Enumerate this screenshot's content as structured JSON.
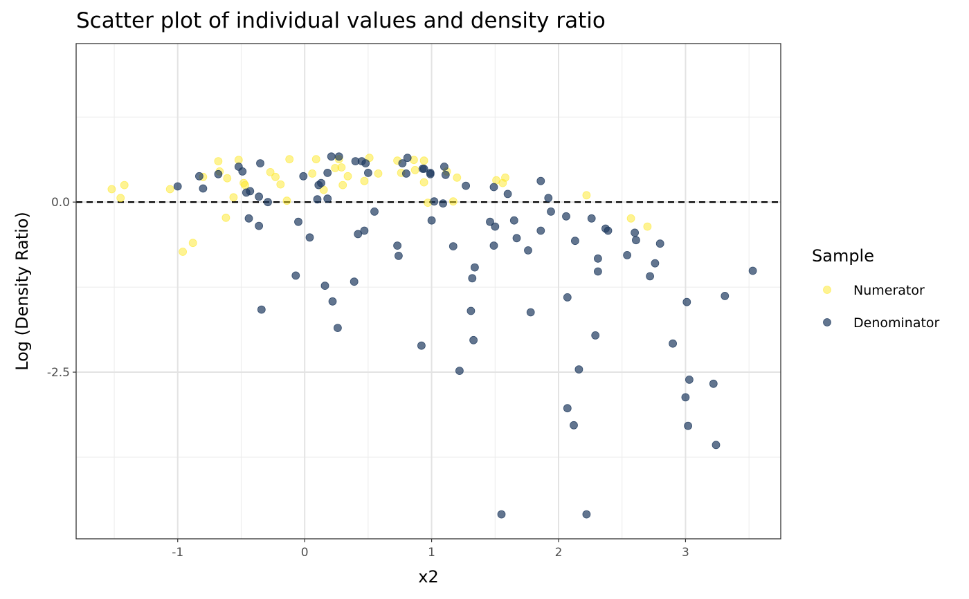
{
  "chart_data": {
    "type": "scatter",
    "title": "Scatter plot of individual values and density ratio",
    "xlabel": "x2",
    "ylabel": "Log (Density Ratio)",
    "xlim": [
      -1.8,
      3.75
    ],
    "ylim": [
      -4.95,
      2.33
    ],
    "x_ticks": [
      -1,
      0,
      1,
      2,
      3
    ],
    "x_tick_labels": [
      "-1",
      "0",
      "1",
      "2",
      "3"
    ],
    "y_ticks": [
      -2.5,
      0
    ],
    "y_tick_labels": [
      "-2.5",
      "0.0"
    ],
    "minor_x": [
      -1.5,
      -0.5,
      0.5,
      1.5,
      2.5,
      3.5
    ],
    "minor_y": [
      -3.75,
      -1.25,
      1.25
    ],
    "grid": true,
    "reference_line": {
      "y": 0,
      "style": "dashed",
      "color": "#000000"
    },
    "legend": {
      "title": "Sample",
      "position": "right",
      "entries": [
        "Numerator",
        "Denominator"
      ]
    },
    "series": [
      {
        "name": "Numerator",
        "color": "#fde725",
        "opacity": 0.5,
        "points": [
          [
            -1.52,
            0.19
          ],
          [
            -1.45,
            0.06
          ],
          [
            -1.42,
            0.25
          ],
          [
            -1.06,
            0.19
          ],
          [
            -0.96,
            -0.73
          ],
          [
            -0.88,
            -0.6
          ],
          [
            -0.8,
            0.37
          ],
          [
            -0.68,
            0.6
          ],
          [
            -0.67,
            0.45
          ],
          [
            -0.62,
            -0.23
          ],
          [
            -0.61,
            0.35
          ],
          [
            -0.56,
            0.07
          ],
          [
            -0.52,
            0.62
          ],
          [
            -0.48,
            0.28
          ],
          [
            -0.47,
            0.25
          ],
          [
            -0.27,
            0.44
          ],
          [
            -0.23,
            0.37
          ],
          [
            -0.19,
            0.26
          ],
          [
            -0.14,
            0.02
          ],
          [
            -0.12,
            0.63
          ],
          [
            0.06,
            0.42
          ],
          [
            0.09,
            0.63
          ],
          [
            0.15,
            0.18
          ],
          [
            0.24,
            0.5
          ],
          [
            0.27,
            0.63
          ],
          [
            0.29,
            0.51
          ],
          [
            0.3,
            0.25
          ],
          [
            0.34,
            0.38
          ],
          [
            0.47,
            0.31
          ],
          [
            0.51,
            0.65
          ],
          [
            0.58,
            0.42
          ],
          [
            0.73,
            0.61
          ],
          [
            0.76,
            0.43
          ],
          [
            0.86,
            0.62
          ],
          [
            0.87,
            0.47
          ],
          [
            0.94,
            0.61
          ],
          [
            0.94,
            0.29
          ],
          [
            0.97,
            -0.01
          ],
          [
            1.12,
            0.45
          ],
          [
            1.17,
            0.01
          ],
          [
            1.2,
            0.36
          ],
          [
            1.51,
            0.32
          ],
          [
            1.56,
            0.28
          ],
          [
            1.58,
            0.36
          ],
          [
            2.22,
            0.1
          ],
          [
            2.57,
            -0.24
          ],
          [
            2.7,
            -0.36
          ]
        ]
      },
      {
        "name": "Denominator",
        "color": "#1f3b5f",
        "opacity": 0.7,
        "points": [
          [
            -1.0,
            0.23
          ],
          [
            -0.83,
            0.38
          ],
          [
            -0.8,
            0.2
          ],
          [
            -0.68,
            0.41
          ],
          [
            -0.52,
            0.52
          ],
          [
            -0.49,
            0.45
          ],
          [
            -0.46,
            0.14
          ],
          [
            -0.44,
            -0.24
          ],
          [
            -0.43,
            0.16
          ],
          [
            -0.36,
            0.08
          ],
          [
            -0.36,
            -0.35
          ],
          [
            -0.35,
            0.57
          ],
          [
            -0.34,
            -1.58
          ],
          [
            -0.29,
            0.0
          ],
          [
            -0.07,
            -1.08
          ],
          [
            -0.05,
            -0.29
          ],
          [
            -0.01,
            0.38
          ],
          [
            0.04,
            -0.52
          ],
          [
            0.1,
            0.04
          ],
          [
            0.11,
            0.25
          ],
          [
            0.13,
            0.28
          ],
          [
            0.16,
            -1.23
          ],
          [
            0.18,
            0.43
          ],
          [
            0.18,
            0.05
          ],
          [
            0.21,
            0.67
          ],
          [
            0.22,
            -1.46
          ],
          [
            0.26,
            -1.85
          ],
          [
            0.27,
            0.67
          ],
          [
            0.39,
            -1.17
          ],
          [
            0.4,
            0.6
          ],
          [
            0.42,
            -0.47
          ],
          [
            0.45,
            0.6
          ],
          [
            0.47,
            -0.42
          ],
          [
            0.48,
            0.57
          ],
          [
            0.5,
            0.43
          ],
          [
            0.55,
            -0.14
          ],
          [
            0.73,
            -0.64
          ],
          [
            0.74,
            -0.79
          ],
          [
            0.77,
            0.57
          ],
          [
            0.8,
            0.42
          ],
          [
            0.81,
            0.65
          ],
          [
            0.92,
            -2.11
          ],
          [
            0.93,
            0.49
          ],
          [
            0.94,
            0.49
          ],
          [
            0.99,
            0.43
          ],
          [
            0.99,
            0.41
          ],
          [
            1.0,
            -0.27
          ],
          [
            1.02,
            0.01
          ],
          [
            1.09,
            -0.02
          ],
          [
            1.1,
            0.52
          ],
          [
            1.11,
            0.4
          ],
          [
            1.17,
            -0.65
          ],
          [
            1.22,
            -2.48
          ],
          [
            1.27,
            0.24
          ],
          [
            1.31,
            -1.6
          ],
          [
            1.32,
            -1.12
          ],
          [
            1.33,
            -2.03
          ],
          [
            1.34,
            -0.96
          ],
          [
            1.46,
            -0.29
          ],
          [
            1.49,
            0.22
          ],
          [
            1.49,
            -0.64
          ],
          [
            1.5,
            -0.36
          ],
          [
            1.55,
            -4.59
          ],
          [
            1.6,
            0.12
          ],
          [
            1.65,
            -0.27
          ],
          [
            1.67,
            -0.53
          ],
          [
            1.76,
            -0.71
          ],
          [
            1.78,
            -1.62
          ],
          [
            1.86,
            -0.42
          ],
          [
            1.86,
            0.31
          ],
          [
            1.92,
            0.06
          ],
          [
            1.94,
            -0.14
          ],
          [
            2.06,
            -0.21
          ],
          [
            2.07,
            -3.03
          ],
          [
            2.07,
            -1.4
          ],
          [
            2.12,
            -3.28
          ],
          [
            2.13,
            -0.57
          ],
          [
            2.16,
            -2.46
          ],
          [
            2.22,
            -4.59
          ],
          [
            2.26,
            -0.24
          ],
          [
            2.29,
            -1.96
          ],
          [
            2.31,
            -0.83
          ],
          [
            2.31,
            -1.02
          ],
          [
            2.37,
            -0.39
          ],
          [
            2.39,
            -0.42
          ],
          [
            2.54,
            -0.78
          ],
          [
            2.6,
            -0.45
          ],
          [
            2.61,
            -0.56
          ],
          [
            2.72,
            -1.09
          ],
          [
            2.76,
            -0.9
          ],
          [
            2.8,
            -0.61
          ],
          [
            2.9,
            -2.08
          ],
          [
            3.0,
            -2.87
          ],
          [
            3.01,
            -1.47
          ],
          [
            3.02,
            -3.29
          ],
          [
            3.03,
            -2.61
          ],
          [
            3.22,
            -2.67
          ],
          [
            3.24,
            -3.57
          ],
          [
            3.31,
            -1.38
          ],
          [
            3.53,
            -1.01
          ]
        ]
      }
    ]
  }
}
